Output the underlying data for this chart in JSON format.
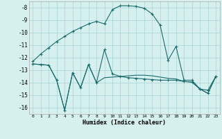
{
  "xlabel": "Humidex (Indice chaleur)",
  "bg_color": "#d6f0f0",
  "grid_color": "#b0d8d8",
  "line_color": "#1a6b6b",
  "xlim": [
    -0.5,
    23.5
  ],
  "ylim": [
    -16.5,
    -7.5
  ],
  "yticks": [
    -16,
    -15,
    -14,
    -13,
    -12,
    -11,
    -10,
    -9,
    -8
  ],
  "xticks": [
    0,
    1,
    2,
    3,
    4,
    5,
    6,
    7,
    8,
    9,
    10,
    11,
    12,
    13,
    14,
    15,
    16,
    17,
    18,
    19,
    20,
    21,
    22,
    23
  ],
  "line1_x": [
    0,
    1,
    2,
    3,
    4,
    5,
    6,
    7,
    8,
    9,
    10,
    11,
    12,
    13,
    14,
    15,
    16,
    17,
    18,
    19,
    20,
    21,
    22,
    23
  ],
  "line1_y": [
    -12.3,
    -11.7,
    -11.2,
    -10.7,
    -10.3,
    -9.9,
    -9.6,
    -9.3,
    -9.1,
    -9.3,
    -8.15,
    -7.85,
    -7.85,
    -7.9,
    -8.05,
    -8.5,
    -9.4,
    -12.2,
    -11.1,
    -13.8,
    -13.8,
    -14.5,
    -14.6,
    -13.5
  ],
  "line2_x": [
    0,
    1,
    2,
    3,
    4,
    5,
    6,
    7,
    8,
    9,
    10,
    11,
    12,
    13,
    14,
    15,
    16,
    17,
    18,
    19,
    20,
    21,
    22,
    23
  ],
  "line2_y": [
    -12.5,
    -12.55,
    -12.6,
    -13.8,
    -16.2,
    -13.2,
    -14.4,
    -12.55,
    -14.0,
    -11.35,
    -13.3,
    -13.5,
    -13.6,
    -13.65,
    -13.7,
    -13.75,
    -13.8,
    -13.8,
    -13.8,
    -13.9,
    -13.95,
    -14.5,
    -14.85,
    -13.5
  ],
  "line3_x": [
    0,
    1,
    2,
    3,
    4,
    5,
    6,
    7,
    8,
    9,
    10,
    11,
    12,
    13,
    14,
    15,
    16,
    17,
    18,
    19,
    20,
    21,
    22,
    23
  ],
  "line3_y": [
    -12.5,
    -12.55,
    -12.6,
    -13.8,
    -16.2,
    -13.2,
    -14.4,
    -12.55,
    -14.0,
    -13.6,
    -13.55,
    -13.5,
    -13.45,
    -13.4,
    -13.4,
    -13.45,
    -13.55,
    -13.65,
    -13.7,
    -13.9,
    -13.95,
    -14.5,
    -14.85,
    -13.5
  ]
}
